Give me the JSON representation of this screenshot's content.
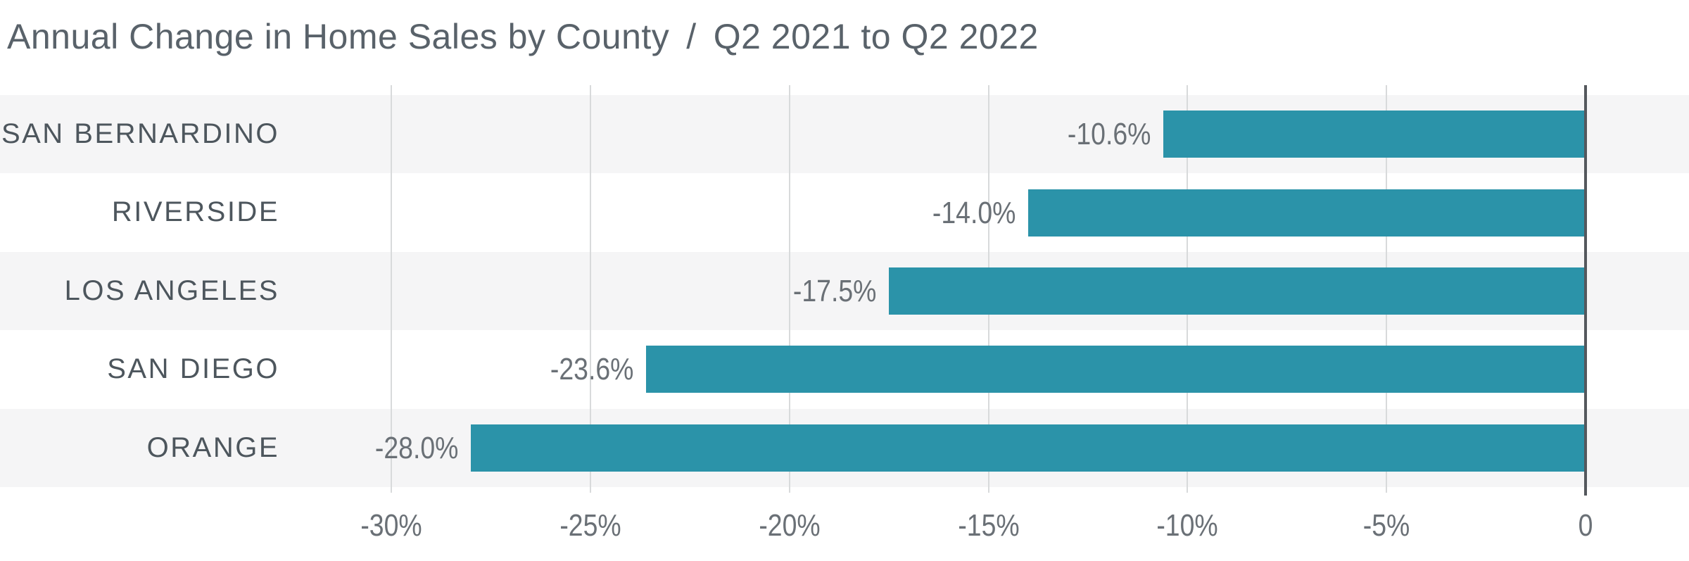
{
  "title": {
    "main": "Annual Change in Home Sales by County",
    "separator": "/",
    "subtitle": "Q2 2021 to Q2 2022"
  },
  "chart_data": {
    "type": "bar",
    "orientation": "horizontal",
    "title": "Annual Change in Home Sales by County / Q2 2021 to Q2 2022",
    "categories": [
      "SAN BERNARDINO",
      "RIVERSIDE",
      "LOS ANGELES",
      "SAN DIEGO",
      "ORANGE"
    ],
    "values": [
      -10.6,
      -14.0,
      -17.5,
      -23.6,
      -28.0
    ],
    "value_labels": [
      "-10.6%",
      "-14.0%",
      "-17.5%",
      "-23.6%",
      "-28.0%"
    ],
    "unit": "percent",
    "xlabel": "",
    "ylabel": "",
    "xlim": [
      -30,
      0
    ],
    "x_ticks": [
      {
        "value": -30,
        "label": "-30%"
      },
      {
        "value": -25,
        "label": "-25%"
      },
      {
        "value": -20,
        "label": "-20%"
      },
      {
        "value": -15,
        "label": "-15%"
      },
      {
        "value": -10,
        "label": "-10%"
      },
      {
        "value": -5,
        "label": "-5%"
      },
      {
        "value": 0,
        "label": "0"
      }
    ],
    "legend": "none",
    "gridlines": true,
    "row_bands": "alternating-gray-starting-first-row",
    "bars_grow": "leftward-from-zero-axis-at-right",
    "value_label_position": "left-of-bar-end"
  },
  "colors": {
    "background": "#FFFFFF",
    "bar": "#2B93A9",
    "band": "#F5F5F6",
    "gridline": "#D8DADB",
    "zero_axis": "#54585D",
    "title_text": "#59626A",
    "category_text": "#4D565D",
    "value_text": "#6A7076",
    "tick_text": "#6A7076"
  }
}
